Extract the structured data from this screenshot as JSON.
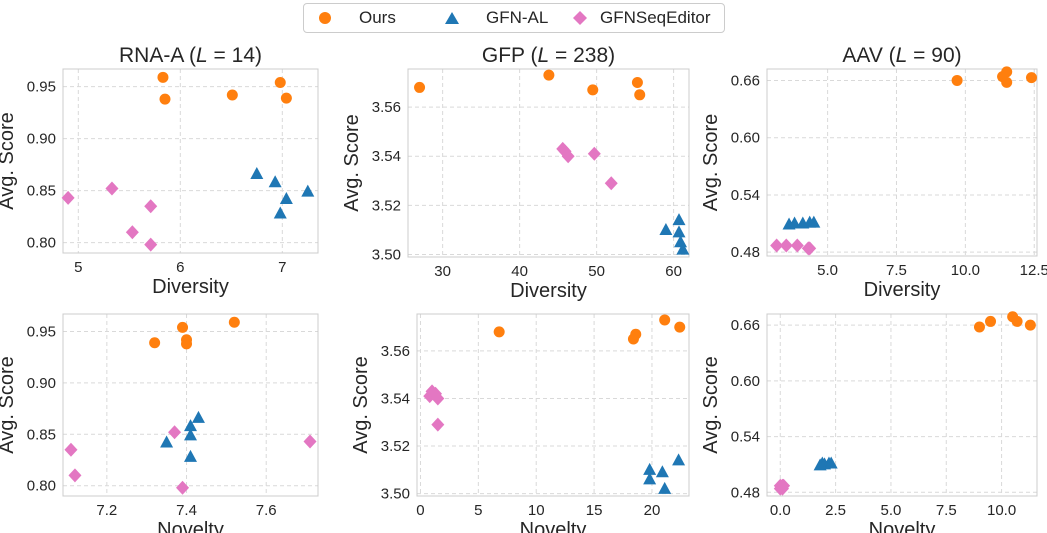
{
  "legend": {
    "items": [
      {
        "label": "Ours",
        "marker": "circle",
        "color": "#ff7f0e"
      },
      {
        "label": "GFN-AL",
        "marker": "triangle",
        "color": "#1f77b4"
      },
      {
        "label": "GFNSeqEditor",
        "marker": "diamond",
        "color": "#e377c2"
      }
    ]
  },
  "chart_data": [
    {
      "type": "scatter",
      "title": "RNA-A (L = 14)",
      "title_main": "RNA-A (",
      "title_var": "L",
      "title_eq": " = 14)",
      "xlabel": "Diversity",
      "ylabel": "Avg. Score",
      "xlim": [
        4.85,
        7.35
      ],
      "ylim": [
        0.79,
        0.967
      ],
      "xticks": [
        5,
        6,
        7
      ],
      "xtick_labels": [
        "5",
        "6",
        "7"
      ],
      "yticks": [
        0.8,
        0.85,
        0.9,
        0.95
      ],
      "ytick_labels": [
        "0.80",
        "0.85",
        "0.90",
        "0.95"
      ],
      "grid": true,
      "series": [
        {
          "name": "Ours",
          "points": [
            [
              5.83,
              0.959
            ],
            [
              5.85,
              0.938
            ],
            [
              6.51,
              0.942
            ],
            [
              6.98,
              0.954
            ],
            [
              7.04,
              0.939
            ]
          ]
        },
        {
          "name": "GFN-AL",
          "points": [
            [
              6.75,
              0.866
            ],
            [
              6.93,
              0.858
            ],
            [
              6.98,
              0.828
            ],
            [
              7.04,
              0.842
            ],
            [
              7.25,
              0.849
            ]
          ]
        },
        {
          "name": "GFNSeqEditor",
          "points": [
            [
              4.9,
              0.843
            ],
            [
              5.33,
              0.852
            ],
            [
              5.53,
              0.81
            ],
            [
              5.71,
              0.835
            ],
            [
              5.71,
              0.798
            ]
          ]
        }
      ]
    },
    {
      "type": "scatter",
      "title": "GFP (L = 238)",
      "title_main": "GFP (",
      "title_var": "L",
      "title_eq": " = 238)",
      "xlabel": "Diversity",
      "ylabel": "Avg. Score",
      "xlim": [
        25.5,
        62
      ],
      "ylim": [
        3.499,
        3.5755
      ],
      "xticks": [
        30,
        40,
        50,
        60
      ],
      "xtick_labels": [
        "30",
        "40",
        "50",
        "60"
      ],
      "yticks": [
        3.5,
        3.52,
        3.54,
        3.56
      ],
      "ytick_labels": [
        "3.50",
        "3.52",
        "3.54",
        "3.56"
      ],
      "grid": true,
      "series": [
        {
          "name": "Ours",
          "points": [
            [
              27,
              3.568
            ],
            [
              43.8,
              3.573
            ],
            [
              49.5,
              3.567
            ],
            [
              55.3,
              3.57
            ],
            [
              55.6,
              3.565
            ]
          ]
        },
        {
          "name": "GFN-AL",
          "points": [
            [
              59,
              3.51
            ],
            [
              60.7,
              3.514
            ],
            [
              60.7,
              3.509
            ],
            [
              60.9,
              3.505
            ],
            [
              61.2,
              3.502
            ]
          ]
        },
        {
          "name": "GFNSeqEditor",
          "points": [
            [
              45.6,
              3.543
            ],
            [
              45.9,
              3.542
            ],
            [
              46.3,
              3.54
            ],
            [
              49.7,
              3.541
            ],
            [
              51.9,
              3.529
            ]
          ]
        }
      ]
    },
    {
      "type": "scatter",
      "title": "AAV (L = 90)",
      "title_main": "AAV (",
      "title_var": "L",
      "title_eq": " = 90)",
      "xlabel": "Diversity",
      "ylabel": "Avg. Score",
      "xlim": [
        2.8,
        12.6
      ],
      "ylim": [
        0.476,
        0.672
      ],
      "xticks": [
        5.0,
        7.5,
        10.0,
        12.5
      ],
      "xtick_labels": [
        "5.0",
        "7.5",
        "10.0",
        "12.5"
      ],
      "yticks": [
        0.48,
        0.54,
        0.6,
        0.66
      ],
      "ytick_labels": [
        "0.48",
        "0.54",
        "0.60",
        "0.66"
      ],
      "grid": true,
      "series": [
        {
          "name": "Ours",
          "points": [
            [
              9.7,
              0.66
            ],
            [
              11.35,
              0.664
            ],
            [
              11.5,
              0.669
            ],
            [
              11.5,
              0.658
            ],
            [
              12.4,
              0.663
            ]
          ]
        },
        {
          "name": "GFN-AL",
          "points": [
            [
              3.6,
              0.509
            ],
            [
              3.8,
              0.51
            ],
            [
              4.1,
              0.51
            ],
            [
              4.35,
              0.511
            ],
            [
              4.5,
              0.511
            ]
          ]
        },
        {
          "name": "GFNSeqEditor",
          "points": [
            [
              3.15,
              0.487
            ],
            [
              3.5,
              0.487
            ],
            [
              3.9,
              0.487
            ],
            [
              4.3,
              0.484
            ],
            [
              4.35,
              0.484
            ]
          ]
        }
      ]
    },
    {
      "type": "scatter",
      "title": "",
      "xlabel": "Novelty",
      "ylabel": "Avg. Score",
      "xlim": [
        7.09,
        7.73
      ],
      "ylim": [
        0.79,
        0.967
      ],
      "xticks": [
        7.2,
        7.4,
        7.6
      ],
      "xtick_labels": [
        "7.2",
        "7.4",
        "7.6"
      ],
      "yticks": [
        0.8,
        0.85,
        0.9,
        0.95
      ],
      "ytick_labels": [
        "0.80",
        "0.85",
        "0.90",
        "0.95"
      ],
      "grid": true,
      "series": [
        {
          "name": "Ours",
          "points": [
            [
              7.32,
              0.939
            ],
            [
              7.39,
              0.954
            ],
            [
              7.4,
              0.942
            ],
            [
              7.4,
              0.938
            ],
            [
              7.52,
              0.959
            ]
          ]
        },
        {
          "name": "GFN-AL",
          "points": [
            [
              7.35,
              0.842
            ],
            [
              7.41,
              0.858
            ],
            [
              7.41,
              0.849
            ],
            [
              7.41,
              0.828
            ],
            [
              7.43,
              0.866
            ]
          ]
        },
        {
          "name": "GFNSeqEditor",
          "points": [
            [
              7.11,
              0.835
            ],
            [
              7.12,
              0.81
            ],
            [
              7.37,
              0.852
            ],
            [
              7.39,
              0.798
            ],
            [
              7.71,
              0.843
            ]
          ]
        }
      ]
    },
    {
      "type": "scatter",
      "title": "",
      "xlabel": "Novelty",
      "ylabel": "Avg. Score",
      "xlim": [
        -0.3,
        23.2
      ],
      "ylim": [
        3.499,
        3.5755
      ],
      "xticks": [
        0,
        5,
        10,
        15,
        20
      ],
      "xtick_labels": [
        "0",
        "5",
        "10",
        "15",
        "20"
      ],
      "yticks": [
        3.5,
        3.52,
        3.54,
        3.56
      ],
      "ytick_labels": [
        "3.50",
        "3.52",
        "3.54",
        "3.56"
      ],
      "grid": true,
      "series": [
        {
          "name": "Ours",
          "points": [
            [
              6.8,
              3.568
            ],
            [
              18.4,
              3.565
            ],
            [
              18.6,
              3.567
            ],
            [
              21.1,
              3.573
            ],
            [
              22.4,
              3.57
            ]
          ]
        },
        {
          "name": "GFN-AL",
          "points": [
            [
              19.8,
              3.51
            ],
            [
              19.8,
              3.506
            ],
            [
              20.9,
              3.509
            ],
            [
              21.1,
              3.502
            ],
            [
              22.3,
              3.514
            ]
          ]
        },
        {
          "name": "GFNSeqEditor",
          "points": [
            [
              0.8,
              3.541
            ],
            [
              1.0,
              3.543
            ],
            [
              1.3,
              3.542
            ],
            [
              1.5,
              3.54
            ],
            [
              1.5,
              3.529
            ]
          ]
        }
      ]
    },
    {
      "type": "scatter",
      "title": "",
      "xlabel": "Novelty",
      "ylabel": "Avg. Score",
      "xlim": [
        -0.6,
        11.6
      ],
      "ylim": [
        0.476,
        0.672
      ],
      "xticks": [
        0.0,
        2.5,
        5.0,
        7.5,
        10.0
      ],
      "xtick_labels": [
        "0.0",
        "2.5",
        "5.0",
        "7.5",
        "10.0"
      ],
      "yticks": [
        0.48,
        0.54,
        0.6,
        0.66
      ],
      "ytick_labels": [
        "0.48",
        "0.54",
        "0.60",
        "0.66"
      ],
      "grid": true,
      "series": [
        {
          "name": "Ours",
          "points": [
            [
              9.0,
              0.658
            ],
            [
              9.5,
              0.664
            ],
            [
              10.5,
              0.669
            ],
            [
              10.7,
              0.664
            ],
            [
              11.3,
              0.66
            ]
          ]
        },
        {
          "name": "GFN-AL",
          "points": [
            [
              1.8,
              0.509
            ],
            [
              1.9,
              0.511
            ],
            [
              2.0,
              0.51
            ],
            [
              2.2,
              0.511
            ],
            [
              2.3,
              0.511
            ]
          ]
        },
        {
          "name": "GFNSeqEditor",
          "points": [
            [
              0.0,
              0.487
            ],
            [
              0.0,
              0.484
            ],
            [
              0.1,
              0.487
            ],
            [
              0.1,
              0.484
            ],
            [
              0.15,
              0.487
            ]
          ]
        }
      ]
    }
  ]
}
